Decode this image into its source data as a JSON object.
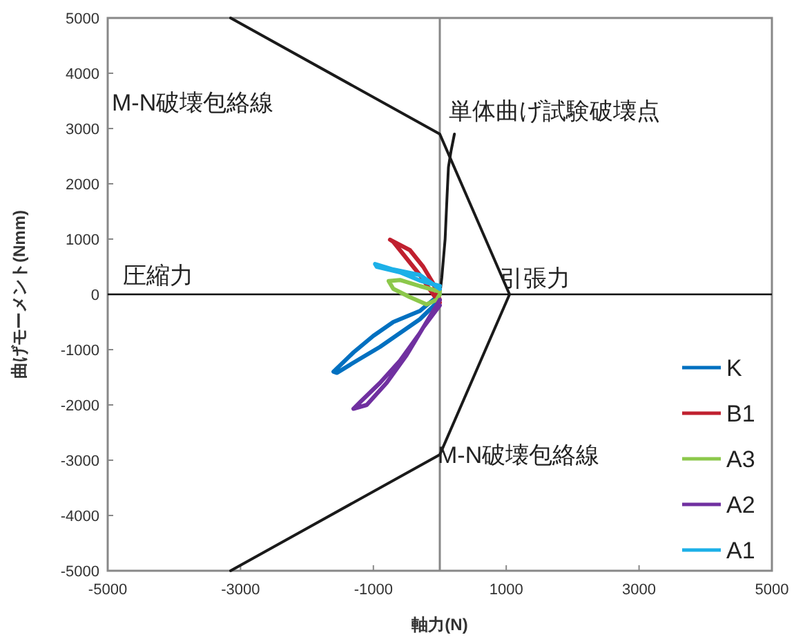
{
  "chart_data": {
    "type": "line",
    "xlabel": "軸力(N)",
    "ylabel": "曲げモーメント(Nmm)",
    "xlim": [
      -5000,
      5000
    ],
    "ylim": [
      -5000,
      5000
    ],
    "xticks": [
      -5000,
      -3000,
      -1000,
      1000,
      3000,
      5000
    ],
    "yticks": [
      -5000,
      -4000,
      -3000,
      -2000,
      -1000,
      0,
      1000,
      2000,
      3000,
      4000,
      5000
    ],
    "grid": false,
    "legend": "bottom right",
    "marker": "none",
    "line_style": "solid",
    "ref_lines": [
      {
        "axis": "x",
        "value": 0,
        "label": null,
        "color": "#888888"
      },
      {
        "axis": "y",
        "value": 0,
        "label": null,
        "color": "#000000"
      }
    ],
    "series": [
      {
        "color": "#1a1a1a",
        "x": [
          -3150,
          0,
          1050,
          0,
          -3150
        ],
        "values": [
          5000,
          2900,
          0,
          -2900,
          -5000
        ]
      },
      {
        "color": "#1a1a1a",
        "x": [
          0,
          30,
          80,
          110,
          130,
          170,
          220
        ],
        "values": [
          0,
          300,
          1000,
          1800,
          2300,
          2600,
          2900
        ]
      },
      {
        "name": "K",
        "color": "#0070c0",
        "x": [
          0,
          -300,
          -700,
          -1000,
          -1300,
          -1600,
          -1550,
          -1250,
          -900,
          -600,
          -300,
          0
        ],
        "values": [
          0,
          -300,
          -500,
          -750,
          -1050,
          -1400,
          -1420,
          -1200,
          -950,
          -700,
          -450,
          -100
        ]
      },
      {
        "name": "B1",
        "color": "#c0202f",
        "x": [
          0,
          -100,
          -250,
          -450,
          -750,
          -700,
          -500,
          -300,
          -100,
          0
        ],
        "values": [
          -100,
          200,
          500,
          800,
          990,
          950,
          650,
          350,
          0,
          -150
        ]
      },
      {
        "name": "A3",
        "color": "#8cc84b",
        "x": [
          0,
          -300,
          -600,
          -770,
          -700,
          -450,
          -200,
          -50,
          0
        ],
        "values": [
          50,
          150,
          260,
          240,
          100,
          -50,
          -180,
          -100,
          0
        ]
      },
      {
        "name": "A2",
        "color": "#7030a0",
        "x": [
          0,
          -300,
          -600,
          -900,
          -1200,
          -1300,
          -1100,
          -800,
          -500,
          -250,
          0
        ],
        "values": [
          -100,
          -700,
          -1200,
          -1600,
          -1950,
          -2070,
          -2000,
          -1600,
          -1100,
          -600,
          -200
        ]
      },
      {
        "name": "A1",
        "color": "#1cb0e8",
        "x": [
          0,
          -300,
          -700,
          -975,
          -950,
          -600,
          -300,
          0
        ],
        "values": [
          100,
          350,
          450,
          550,
          500,
          400,
          250,
          150
        ]
      }
    ],
    "annotations": [
      "M-N破壊包絡線",
      "単体曲げ試験破壊点",
      "圧縮力",
      "引張力",
      "M-N破壊包絡線"
    ]
  }
}
